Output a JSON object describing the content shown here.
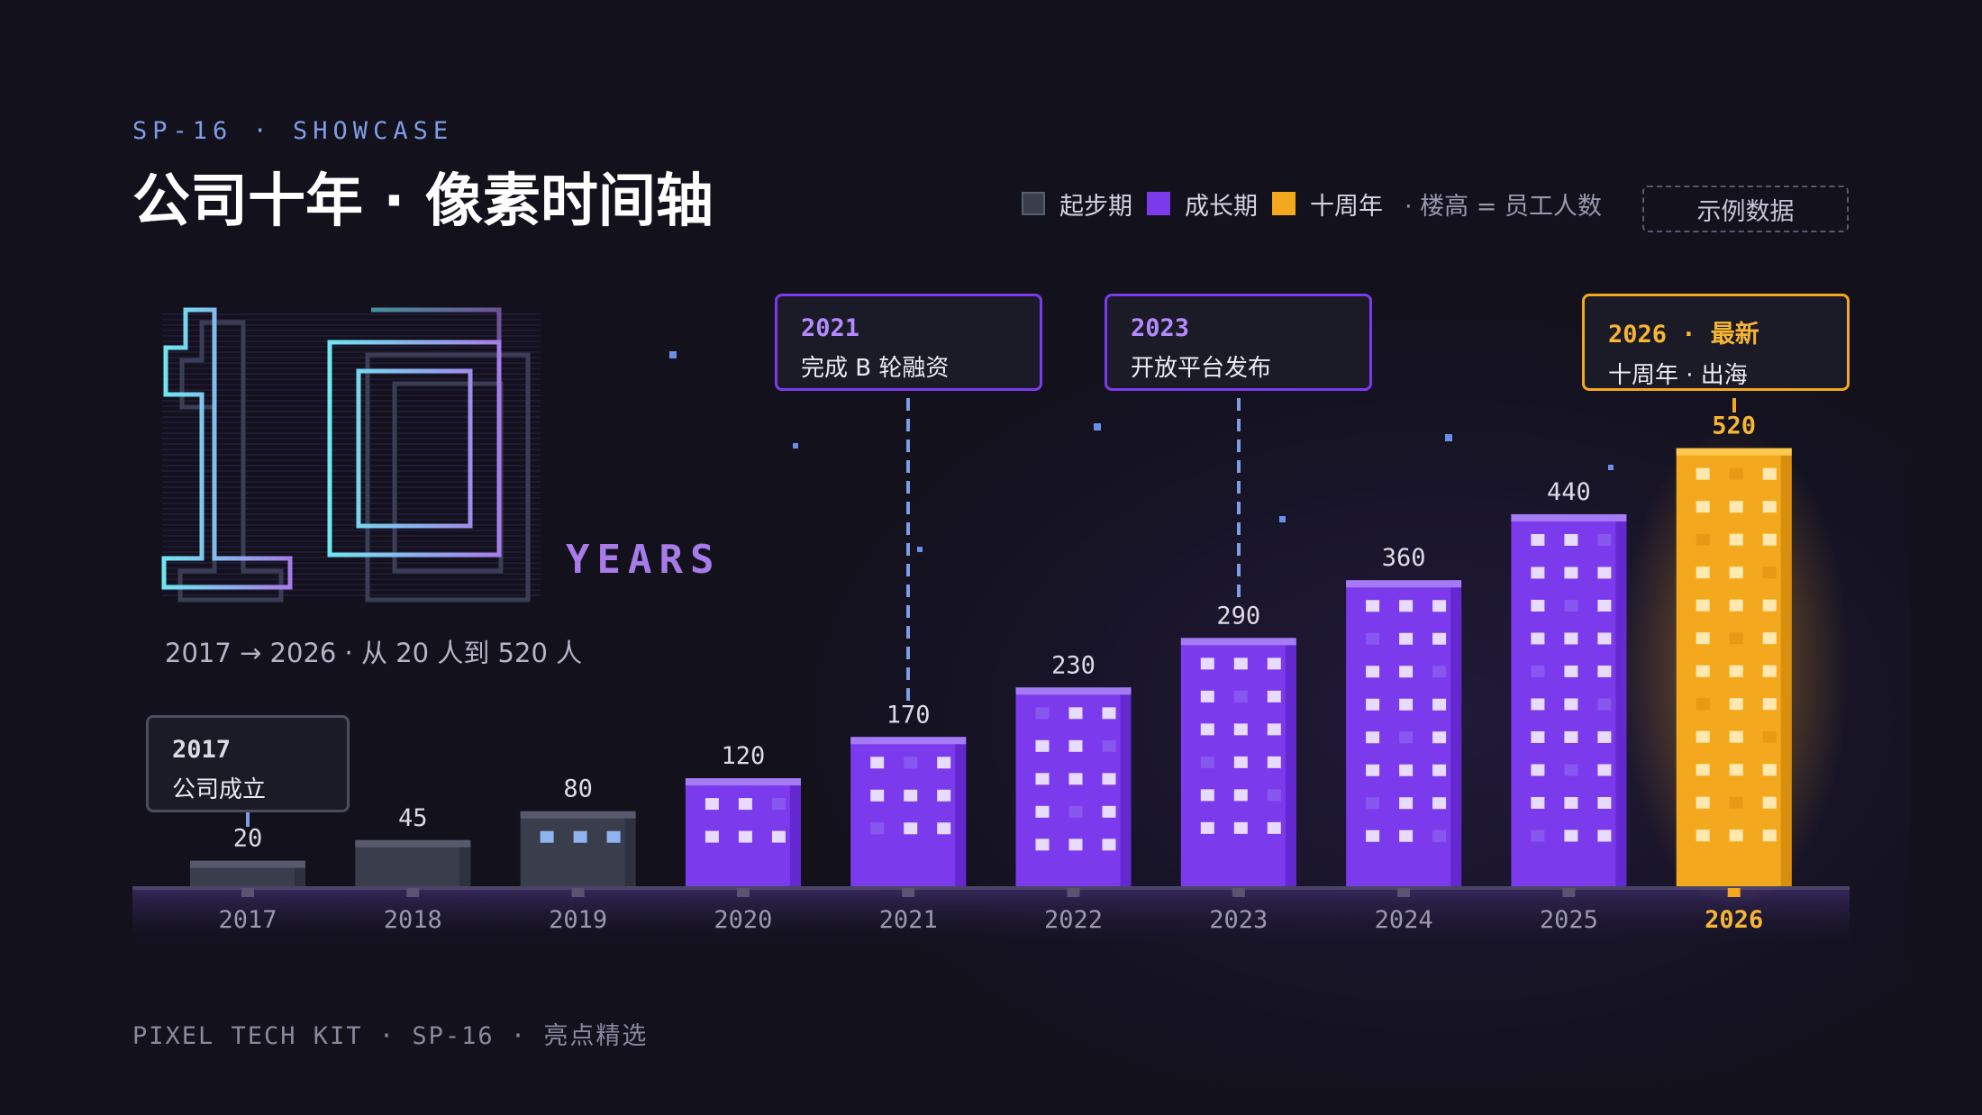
{
  "header": {
    "eyebrow": "SP-16 · SHOWCASE",
    "title": "公司十年 · 像素时间轴"
  },
  "legend": {
    "items": [
      {
        "label": "起步期",
        "color": "#3a3d4c"
      },
      {
        "label": "成长期",
        "color": "#7c3aed"
      },
      {
        "label": "十周年",
        "color": "#f4a81d"
      }
    ],
    "note": "· 楼高 = 员工人数",
    "badge": "示例数据"
  },
  "hero": {
    "big_number": "10",
    "unit": "YEARS",
    "range_text": "2017 → 2026 · 从 20 人到 520 人"
  },
  "callouts": [
    {
      "year": "2017",
      "text": "公司成立",
      "style": "gray"
    },
    {
      "year": "2021",
      "text": "完成 B 轮融资",
      "style": "purple"
    },
    {
      "year": "2023",
      "text": "开放平台发布",
      "style": "purple"
    },
    {
      "year": "2026 · 最新",
      "text": "十周年 · 出海",
      "style": "gold"
    }
  ],
  "chart_data": {
    "type": "bar",
    "categories": [
      "2017",
      "2018",
      "2019",
      "2020",
      "2021",
      "2022",
      "2023",
      "2024",
      "2025",
      "2026"
    ],
    "values": [
      20,
      45,
      80,
      120,
      170,
      230,
      290,
      360,
      440,
      520
    ],
    "phases": [
      "起步期",
      "起步期",
      "起步期",
      "成长期",
      "成长期",
      "成长期",
      "成长期",
      "成长期",
      "成长期",
      "十周年"
    ],
    "highlight": "2026",
    "colors": {
      "startup": "#3a3d4c",
      "growth": "#7c3aed",
      "anniversary": "#f4a81d",
      "axis_label": "#9a98ad",
      "highlight_label": "#f6b533"
    }
  },
  "footer": {
    "text": "PIXEL TECH KIT · SP-16 · 亮点精选"
  }
}
